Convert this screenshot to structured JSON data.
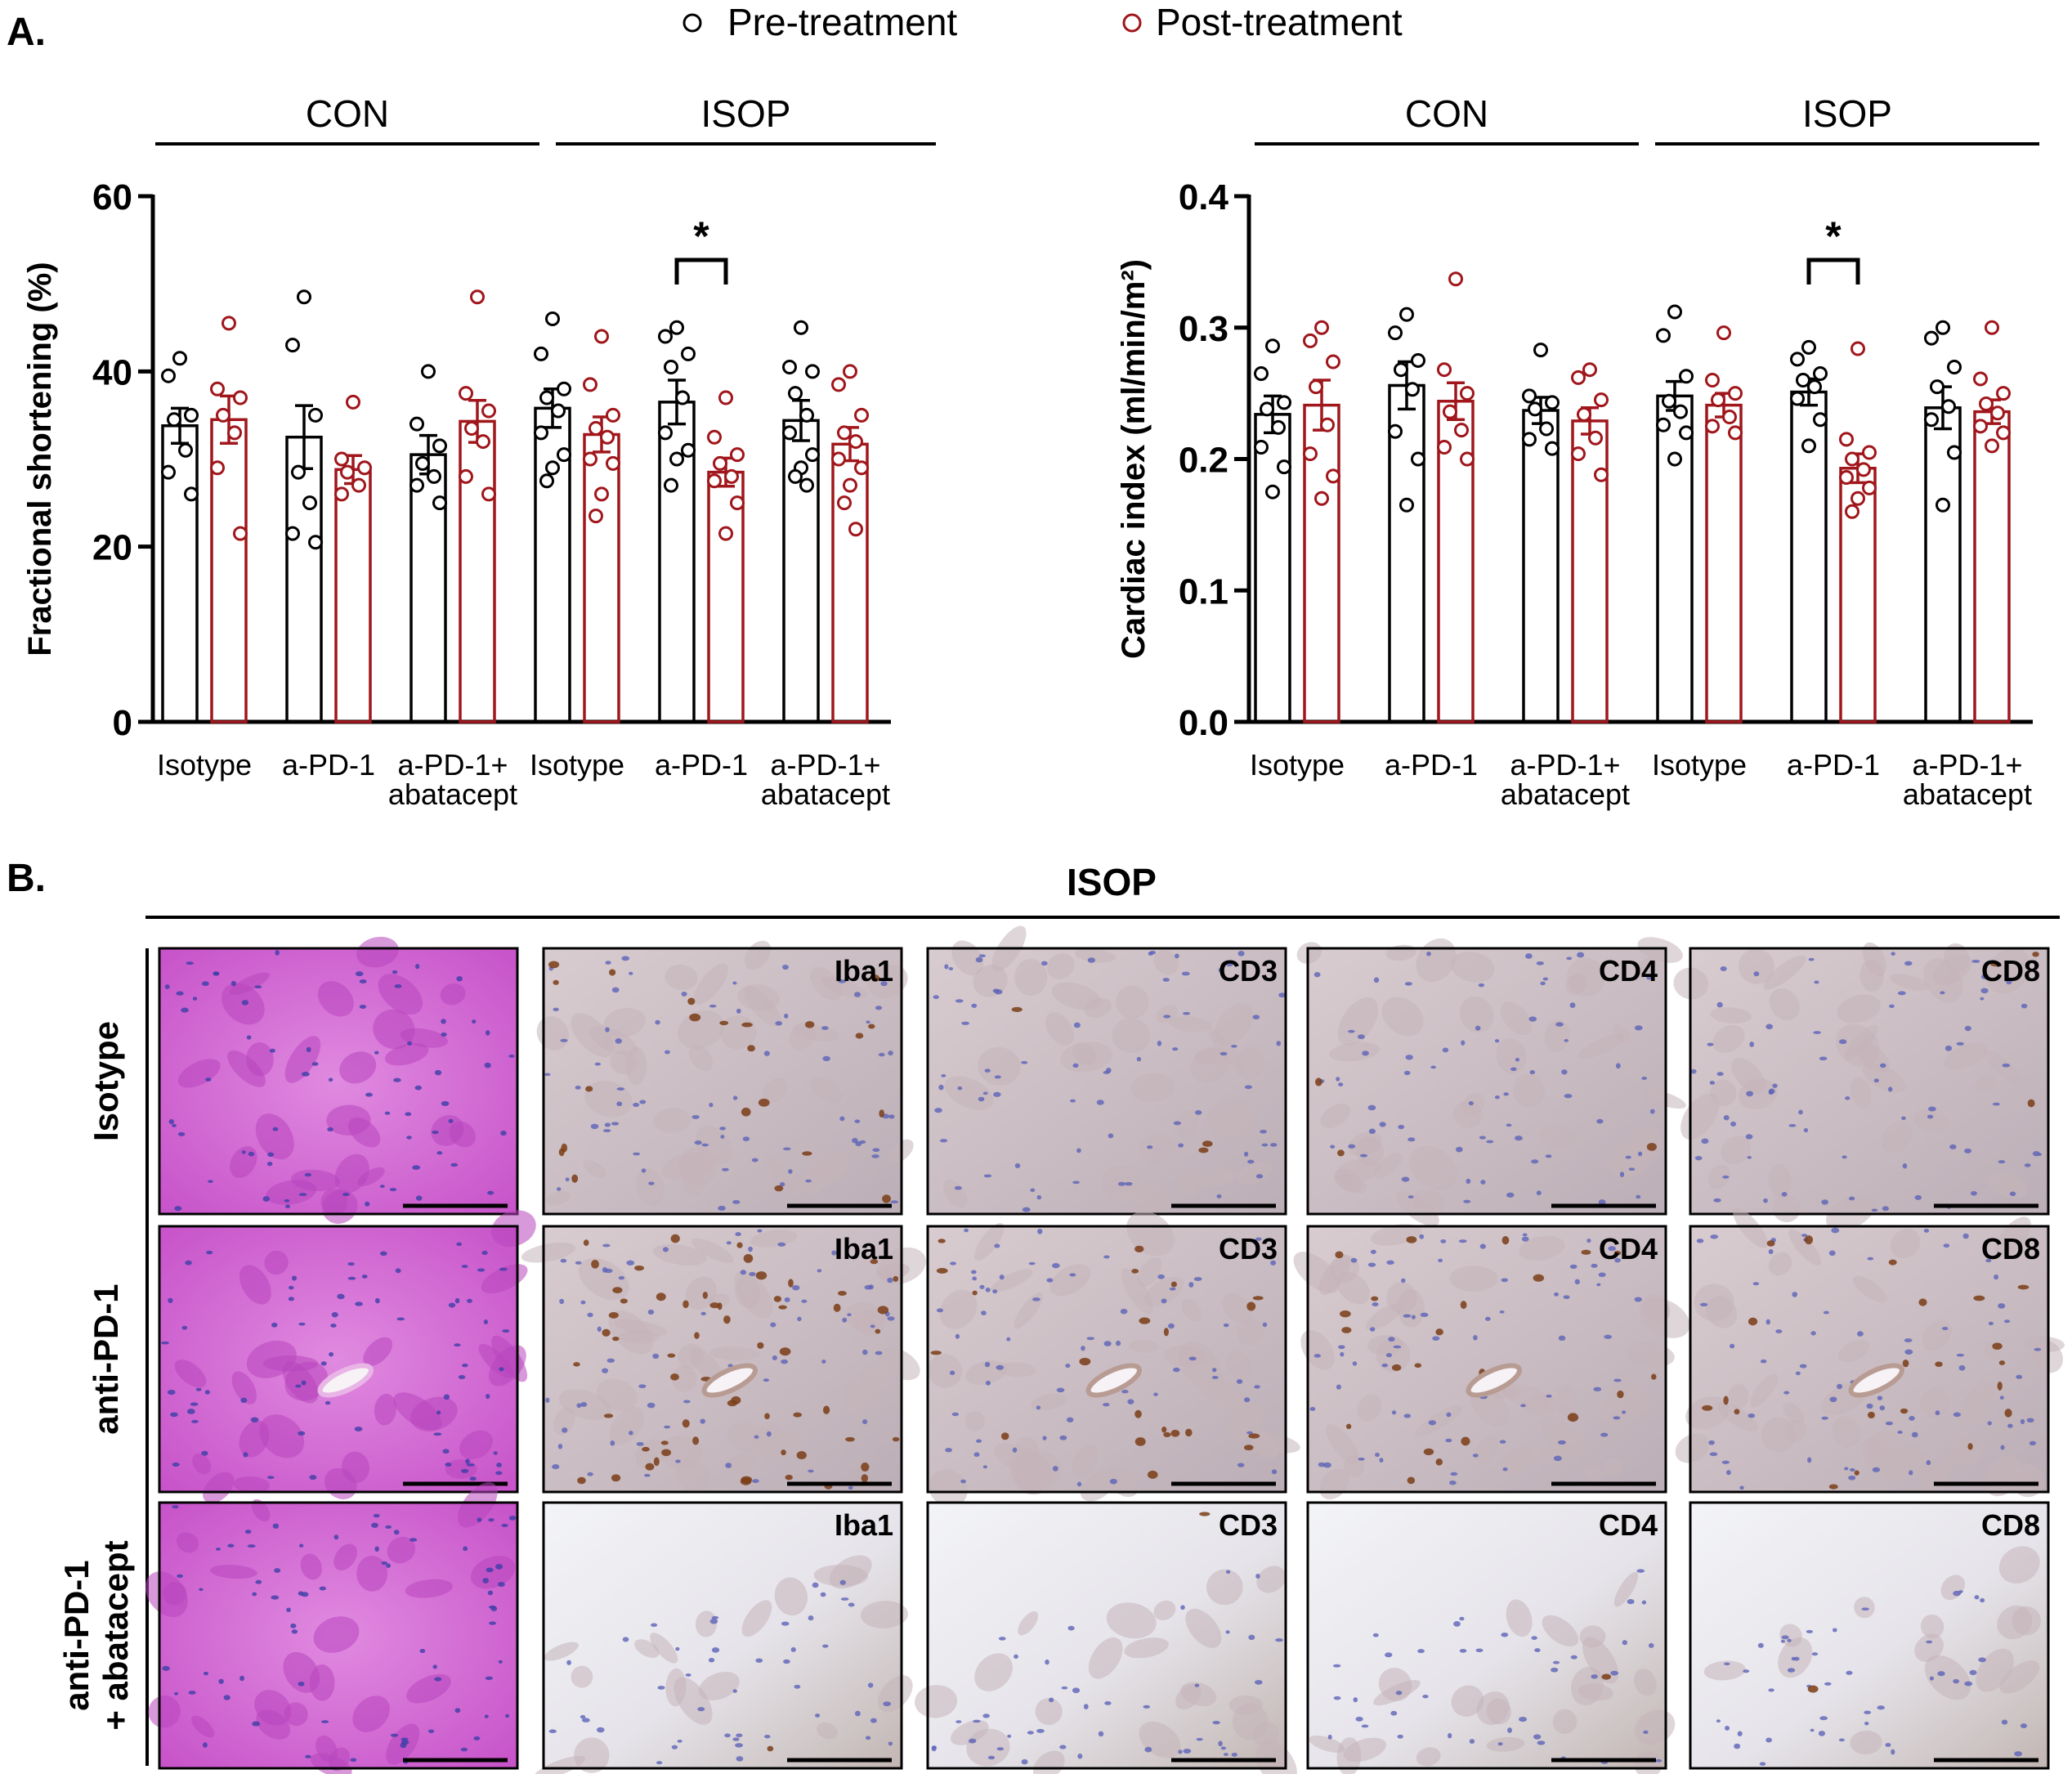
{
  "panel_a": {
    "label": "A.",
    "legend": [
      {
        "label": "Pre-treatment",
        "color": "#000000"
      },
      {
        "label": "Post-treatment",
        "color": "#a0161b"
      }
    ],
    "group_labels": [
      "CON",
      "ISOP"
    ]
  },
  "panel_b": {
    "label": "B.",
    "header": "ISOP",
    "row_labels": [
      [
        "Isotype"
      ],
      [
        "anti-PD-1"
      ],
      [
        "anti-PD-1",
        "+ abatacept"
      ]
    ],
    "column_stains": [
      "",
      "Iba1",
      "CD3",
      "CD4",
      "CD8"
    ]
  },
  "colors": {
    "pre": "#000000",
    "post": "#a0161b",
    "he": "#d56ad6",
    "ihc": "#cfc4cc",
    "dab": "#7a3d16"
  },
  "chart_data": [
    {
      "type": "bar",
      "ylabel": "Fractional shortening (%)",
      "ylim": [
        0,
        60
      ],
      "yticks": [
        0,
        20,
        40,
        60
      ],
      "categories": [
        "Isotype",
        "a-PD-1",
        "a-PD-1+\nabatacept",
        "Isotype",
        "a-PD-1",
        "a-PD-1+\nabatacept"
      ],
      "groups": [
        "CON",
        "CON",
        "CON",
        "ISOP",
        "ISOP",
        "ISOP"
      ],
      "series": [
        {
          "name": "Pre-treatment",
          "values": [
            33.8,
            32.5,
            30.5,
            35.8,
            36.5,
            34.4
          ],
          "sem": [
            2.0,
            3.6,
            2.2,
            2.2,
            2.5,
            2.3
          ],
          "points": [
            [
              41.5,
              39.5,
              35.0,
              34.5,
              31.0,
              28.5,
              26.0
            ],
            [
              48.5,
              43.0,
              35.0,
              28.5,
              25.0,
              21.5,
              20.5
            ],
            [
              40.0,
              34.0,
              31.5,
              29.5,
              28.0,
              27.0,
              25.0
            ],
            [
              46.0,
              42.0,
              38.0,
              37.0,
              35.5,
              33.0,
              30.5,
              29.0,
              27.5
            ],
            [
              45.0,
              44.0,
              42.0,
              40.5,
              37.0,
              33.0,
              31.0,
              30.0,
              27.0
            ],
            [
              45.0,
              40.5,
              40.0,
              37.5,
              35.0,
              33.0,
              30.5,
              29.0,
              28.0,
              27.0
            ]
          ]
        },
        {
          "name": "Post-treatment",
          "values": [
            34.5,
            28.8,
            34.3,
            32.8,
            28.5,
            31.7
          ],
          "sem": [
            2.7,
            1.6,
            2.4,
            2.0,
            1.6,
            1.9
          ],
          "points": [
            [
              45.5,
              38.0,
              37.0,
              35.0,
              33.0,
              29.0,
              21.5
            ],
            [
              36.5,
              30.0,
              29.0,
              28.5,
              27.0,
              26.0
            ],
            [
              48.5,
              37.5,
              35.5,
              33.5,
              32.0,
              28.0,
              26.0
            ],
            [
              44.0,
              38.5,
              35.0,
              33.5,
              32.5,
              30.0,
              29.5,
              26.0,
              23.5
            ],
            [
              37.0,
              32.5,
              30.5,
              29.5,
              28.0,
              27.5,
              25.0,
              21.5
            ],
            [
              40.0,
              38.5,
              35.0,
              33.0,
              32.0,
              30.0,
              29.0,
              27.0,
              25.0,
              22.0
            ]
          ]
        }
      ],
      "significance": [
        {
          "group_index": 4,
          "label": "*"
        }
      ]
    },
    {
      "type": "bar",
      "ylabel": "Cardiac index (ml/min/m²)",
      "ylim": [
        0,
        0.4
      ],
      "yticks": [
        "0.0",
        "0.1",
        "0.2",
        "0.3",
        "0.4"
      ],
      "categories": [
        "Isotype",
        "a-PD-1",
        "a-PD-1+\nabatacept",
        "Isotype",
        "a-PD-1",
        "a-PD-1+\nabatacept"
      ],
      "groups": [
        "CON",
        "CON",
        "CON",
        "ISOP",
        "ISOP",
        "ISOP"
      ],
      "series": [
        {
          "name": "Pre-treatment",
          "values": [
            0.234,
            0.256,
            0.237,
            0.248,
            0.251,
            0.239
          ],
          "sem": [
            0.014,
            0.018,
            0.01,
            0.011,
            0.01,
            0.016
          ],
          "points": [
            [
              0.286,
              0.265,
              0.243,
              0.238,
              0.224,
              0.209,
              0.194,
              0.175
            ],
            [
              0.31,
              0.296,
              0.275,
              0.268,
              0.253,
              0.221,
              0.2,
              0.165
            ],
            [
              0.283,
              0.248,
              0.243,
              0.238,
              0.223,
              0.215,
              0.208
            ],
            [
              0.312,
              0.294,
              0.263,
              0.244,
              0.236,
              0.226,
              0.22,
              0.2
            ],
            [
              0.285,
              0.276,
              0.265,
              0.26,
              0.255,
              0.246,
              0.23,
              0.21
            ],
            [
              0.3,
              0.292,
              0.27,
              0.255,
              0.24,
              0.23,
              0.205,
              0.165
            ]
          ]
        },
        {
          "name": "Post-treatment",
          "values": [
            0.241,
            0.244,
            0.229,
            0.241,
            0.193,
            0.236
          ],
          "sem": [
            0.019,
            0.014,
            0.01,
            0.009,
            0.011,
            0.009
          ],
          "points": [
            [
              0.3,
              0.29,
              0.274,
              0.255,
              0.226,
              0.204,
              0.187,
              0.17
            ],
            [
              0.337,
              0.268,
              0.25,
              0.236,
              0.222,
              0.209,
              0.2
            ],
            [
              0.268,
              0.262,
              0.245,
              0.234,
              0.216,
              0.204,
              0.188
            ],
            [
              0.296,
              0.26,
              0.25,
              0.245,
              0.232,
              0.225,
              0.22
            ],
            [
              0.284,
              0.215,
              0.205,
              0.2,
              0.192,
              0.186,
              0.178,
              0.17,
              0.16
            ],
            [
              0.3,
              0.261,
              0.25,
              0.242,
              0.235,
              0.225,
              0.22,
              0.21
            ]
          ]
        }
      ],
      "significance": [
        {
          "group_index": 4,
          "label": "*"
        }
      ]
    }
  ]
}
